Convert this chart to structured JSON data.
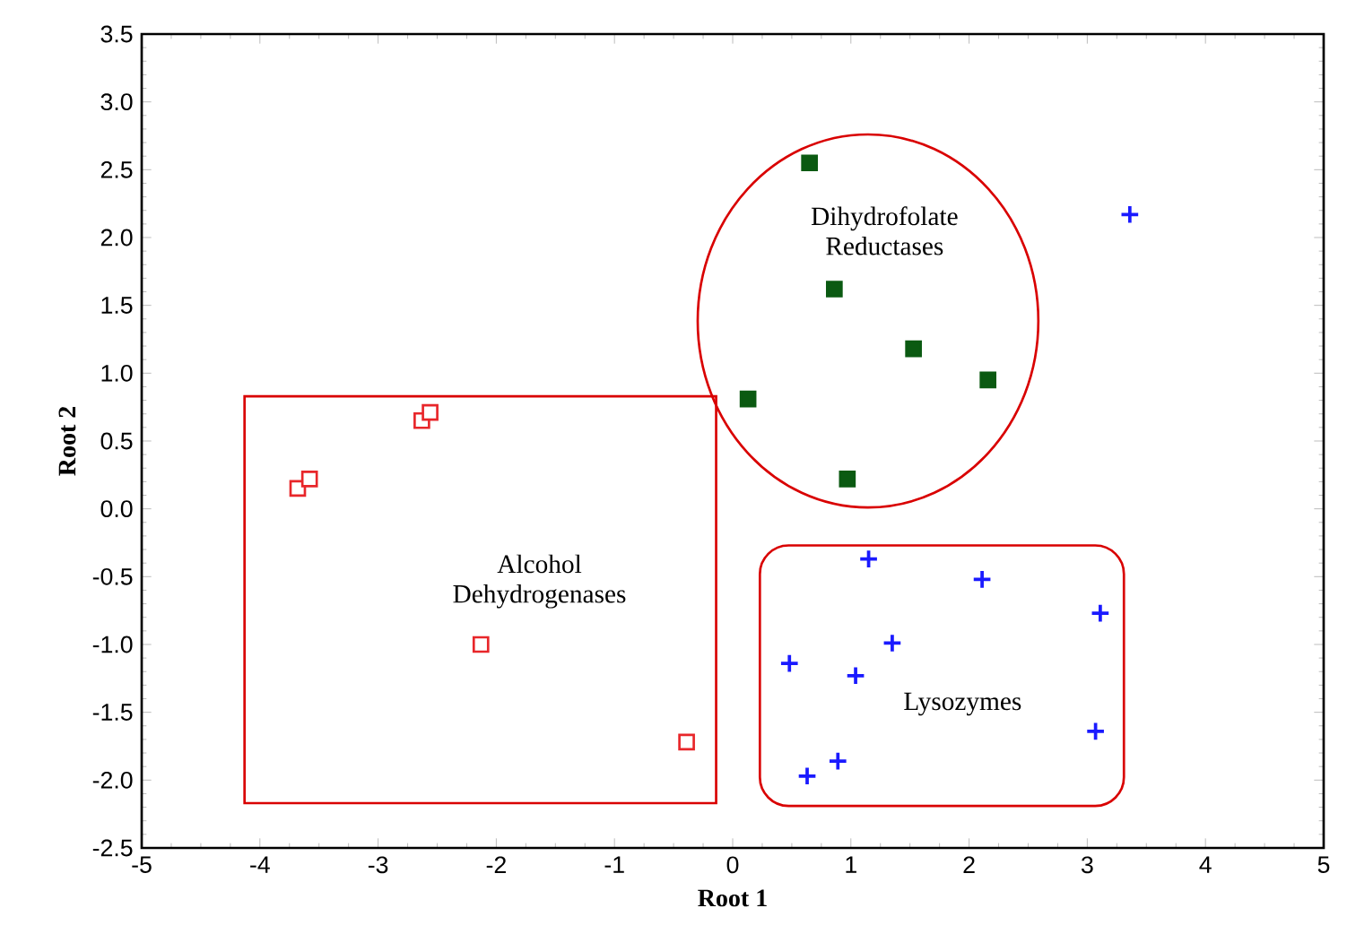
{
  "chart_data": {
    "type": "scatter",
    "xlabel": "Root 1",
    "ylabel": "Root 2",
    "xlim": [
      -5,
      5
    ],
    "ylim": [
      -2.5,
      3.5
    ],
    "xticks": [
      -5,
      -4,
      -3,
      -2,
      -1,
      0,
      1,
      2,
      3,
      4,
      5
    ],
    "yticks": [
      {
        "value": -2.5,
        "label": "-2.5"
      },
      {
        "value": -2.0,
        "label": "-2.0"
      },
      {
        "value": -1.5,
        "label": "-1.5"
      },
      {
        "value": -1.0,
        "label": "-1.0"
      },
      {
        "value": -0.5,
        "label": "-0.5"
      },
      {
        "value": 0,
        "label": "0.0"
      },
      0.5,
      {
        "value": 1.0,
        "label": "1.0"
      },
      1.5,
      {
        "value": 2.0,
        "label": "2.0"
      },
      2.5,
      {
        "value": 3.0,
        "label": "3.0"
      },
      3.5
    ],
    "series": [
      {
        "color": "#e8262a",
        "marker": "square",
        "x": [
          -3.68,
          -3.58,
          -2.63,
          -2.56,
          -2.13,
          -0.39
        ],
        "values": [
          0.15,
          0.22,
          0.65,
          0.71,
          -1.0,
          -1.72
        ]
      },
      {
        "color": "#0b5a12",
        "marker": "square",
        "x": [
          0.65,
          0.86,
          1.53,
          2.16,
          0.13,
          0.97
        ],
        "values": [
          2.55,
          1.62,
          1.18,
          0.95,
          0.81,
          0.22
        ]
      },
      {
        "color": "#1a1aff",
        "marker": "cross",
        "x": [
          3.36,
          1.15,
          2.11,
          3.11,
          1.35,
          0.48,
          1.04,
          3.07,
          0.89,
          0.63
        ],
        "values": [
          2.17,
          -0.37,
          -0.52,
          -0.77,
          -0.99,
          -1.14,
          -1.23,
          -1.64,
          -1.86,
          -1.97
        ]
      }
    ],
    "annotations": [
      "Alcohol Dehydrogenases",
      "Dihydrofolate Reductases",
      "Lysozymes"
    ]
  }
}
